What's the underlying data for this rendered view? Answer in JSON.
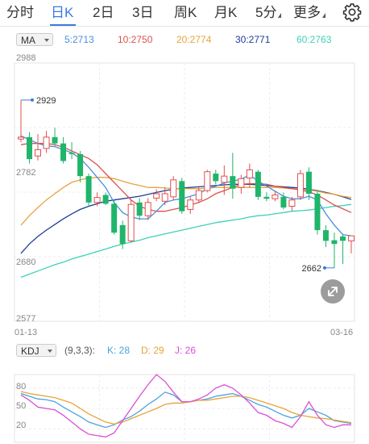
{
  "tabs": [
    {
      "label": "分时",
      "active": false
    },
    {
      "label": "日K",
      "active": true
    },
    {
      "label": "2日",
      "active": false
    },
    {
      "label": "3日",
      "active": false
    },
    {
      "label": "周K",
      "active": false
    },
    {
      "label": "月K",
      "active": false
    },
    {
      "label": "5分",
      "active": false
    },
    {
      "label": "更多",
      "active": false
    }
  ],
  "settings_icon": "gear-icon",
  "ma_legend": {
    "selector": "MA",
    "items": [
      {
        "label": "5:2713",
        "color": "#4a90d9"
      },
      {
        "label": "10:2750",
        "color": "#d9534f"
      },
      {
        "label": "20:2774",
        "color": "#e8a33a"
      },
      {
        "label": "30:2771",
        "color": "#1f3d99"
      },
      {
        "label": "60:2763",
        "color": "#3ed1b5"
      }
    ]
  },
  "price_axis": {
    "ticks": [
      "2988",
      "2782",
      "2680",
      "2577"
    ]
  },
  "date_axis": {
    "start": "01-13",
    "end": "03-16"
  },
  "annotations": {
    "high": "2929",
    "low": "2662"
  },
  "kdj_legend": {
    "selector": "KDJ",
    "params": "(9,3,3):",
    "k": "K: 28",
    "d": "D: 29",
    "j": "J: 26",
    "k_color": "#4aa3df",
    "d_color": "#e8a33a",
    "j_color": "#d94fd6"
  },
  "kdj_axis": {
    "ticks": [
      "80",
      "50",
      "20"
    ]
  },
  "colors": {
    "up": "#e05050",
    "down": "#1fb56a",
    "accent": "#3b7be0"
  },
  "chart_data": [
    {
      "type": "candlestick",
      "title": "",
      "ylim": [
        2577,
        2988
      ],
      "x_range": [
        "01-13",
        "03-16"
      ],
      "candles": [
        {
          "o": 2867,
          "h": 2929,
          "l": 2862,
          "c": 2870
        },
        {
          "o": 2870,
          "h": 2878,
          "l": 2828,
          "c": 2835
        },
        {
          "o": 2840,
          "h": 2875,
          "l": 2833,
          "c": 2850
        },
        {
          "o": 2852,
          "h": 2880,
          "l": 2845,
          "c": 2870
        },
        {
          "o": 2870,
          "h": 2885,
          "l": 2856,
          "c": 2860
        },
        {
          "o": 2860,
          "h": 2870,
          "l": 2828,
          "c": 2832
        },
        {
          "o": 2845,
          "h": 2862,
          "l": 2835,
          "c": 2843
        },
        {
          "o": 2843,
          "h": 2848,
          "l": 2798,
          "c": 2808
        },
        {
          "o": 2808,
          "h": 2812,
          "l": 2760,
          "c": 2766
        },
        {
          "o": 2766,
          "h": 2782,
          "l": 2760,
          "c": 2774
        },
        {
          "o": 2778,
          "h": 2782,
          "l": 2762,
          "c": 2764
        },
        {
          "o": 2764,
          "h": 2770,
          "l": 2715,
          "c": 2718
        },
        {
          "o": 2730,
          "h": 2737,
          "l": 2692,
          "c": 2700
        },
        {
          "o": 2705,
          "h": 2770,
          "l": 2703,
          "c": 2763
        },
        {
          "o": 2766,
          "h": 2773,
          "l": 2738,
          "c": 2745
        },
        {
          "o": 2745,
          "h": 2773,
          "l": 2738,
          "c": 2766
        },
        {
          "o": 2773,
          "h": 2787,
          "l": 2768,
          "c": 2780
        },
        {
          "o": 2768,
          "h": 2790,
          "l": 2762,
          "c": 2780
        },
        {
          "o": 2775,
          "h": 2808,
          "l": 2770,
          "c": 2802
        },
        {
          "o": 2800,
          "h": 2805,
          "l": 2748,
          "c": 2752
        },
        {
          "o": 2755,
          "h": 2775,
          "l": 2748,
          "c": 2770
        },
        {
          "o": 2770,
          "h": 2790,
          "l": 2765,
          "c": 2785
        },
        {
          "o": 2785,
          "h": 2818,
          "l": 2782,
          "c": 2815
        },
        {
          "o": 2812,
          "h": 2818,
          "l": 2795,
          "c": 2800
        },
        {
          "o": 2798,
          "h": 2825,
          "l": 2778,
          "c": 2808
        },
        {
          "o": 2808,
          "h": 2845,
          "l": 2772,
          "c": 2788
        },
        {
          "o": 2790,
          "h": 2810,
          "l": 2780,
          "c": 2804
        },
        {
          "o": 2805,
          "h": 2828,
          "l": 2790,
          "c": 2818
        },
        {
          "o": 2815,
          "h": 2818,
          "l": 2770,
          "c": 2775
        },
        {
          "o": 2775,
          "h": 2782,
          "l": 2768,
          "c": 2772
        },
        {
          "o": 2772,
          "h": 2785,
          "l": 2768,
          "c": 2778
        },
        {
          "o": 2775,
          "h": 2782,
          "l": 2755,
          "c": 2758
        },
        {
          "o": 2760,
          "h": 2775,
          "l": 2752,
          "c": 2770
        },
        {
          "o": 2775,
          "h": 2818,
          "l": 2770,
          "c": 2812
        },
        {
          "o": 2815,
          "h": 2822,
          "l": 2770,
          "c": 2780
        },
        {
          "o": 2780,
          "h": 2785,
          "l": 2715,
          "c": 2722
        },
        {
          "o": 2722,
          "h": 2730,
          "l": 2695,
          "c": 2705
        },
        {
          "o": 2706,
          "h": 2718,
          "l": 2662,
          "c": 2700
        },
        {
          "o": 2712,
          "h": 2716,
          "l": 2668,
          "c": 2705
        },
        {
          "o": 2705,
          "h": 2712,
          "l": 2685,
          "c": 2713
        }
      ],
      "ma": {
        "MA5": [
          2872,
          2866,
          2860,
          2856,
          2855,
          2850,
          2845,
          2836,
          2822,
          2806,
          2790,
          2766,
          2750,
          2743,
          2740,
          2740,
          2752,
          2766,
          2770,
          2772,
          2776,
          2780,
          2788,
          2792,
          2797,
          2800,
          2803,
          2810,
          2800,
          2792,
          2784,
          2776,
          2772,
          2772,
          2776,
          2770,
          2748,
          2730,
          2715,
          2713
        ],
        "MA10": [
          2858,
          2860,
          2860,
          2860,
          2858,
          2854,
          2848,
          2842,
          2836,
          2826,
          2812,
          2798,
          2784,
          2770,
          2760,
          2755,
          2752,
          2752,
          2755,
          2758,
          2762,
          2766,
          2772,
          2780,
          2785,
          2790,
          2795,
          2796,
          2796,
          2795,
          2792,
          2790,
          2788,
          2786,
          2783,
          2778,
          2770,
          2762,
          2756,
          2750
        ],
        "MA20": [
          2730,
          2745,
          2758,
          2770,
          2780,
          2790,
          2798,
          2802,
          2805,
          2806,
          2806,
          2804,
          2800,
          2796,
          2793,
          2790,
          2790,
          2789,
          2788,
          2788,
          2788,
          2788,
          2789,
          2790,
          2790,
          2790,
          2790,
          2790,
          2790,
          2790,
          2790,
          2789,
          2788,
          2787,
          2786,
          2784,
          2781,
          2779,
          2776,
          2774
        ],
        "MA30": [
          2685,
          2700,
          2712,
          2722,
          2731,
          2740,
          2748,
          2755,
          2760,
          2764,
          2768,
          2770,
          2772,
          2774,
          2776,
          2779,
          2782,
          2785,
          2787,
          2789,
          2790,
          2791,
          2792,
          2793,
          2794,
          2795,
          2795,
          2795,
          2794,
          2793,
          2792,
          2791,
          2790,
          2789,
          2787,
          2785,
          2782,
          2779,
          2775,
          2771
        ],
        "MA60": [
          2647,
          2652,
          2657,
          2662,
          2667,
          2671,
          2676,
          2680,
          2684,
          2688,
          2692,
          2696,
          2700,
          2703,
          2706,
          2710,
          2713,
          2716,
          2719,
          2722,
          2725,
          2728,
          2731,
          2734,
          2736,
          2738,
          2740,
          2743,
          2745,
          2746,
          2748,
          2750,
          2752,
          2753,
          2754,
          2756,
          2758,
          2760,
          2761,
          2763
        ]
      }
    },
    {
      "type": "line",
      "title": "",
      "ylim": [
        0,
        100
      ],
      "series": [
        {
          "name": "K",
          "values": [
            72,
            68,
            64,
            63,
            60,
            52,
            45,
            38,
            30,
            26,
            22,
            26,
            33,
            38,
            46,
            56,
            64,
            74,
            70,
            60,
            60,
            62,
            64,
            68,
            70,
            72,
            68,
            62,
            56,
            52,
            46,
            40,
            36,
            40,
            50,
            45,
            40,
            32,
            30,
            28
          ]
        },
        {
          "name": "D",
          "values": [
            75,
            72,
            70,
            68,
            66,
            62,
            58,
            50,
            42,
            36,
            30,
            27,
            30,
            35,
            40,
            45,
            50,
            56,
            58,
            58,
            60,
            62,
            62,
            64,
            66,
            68,
            68,
            66,
            62,
            58,
            54,
            50,
            44,
            40,
            38,
            36,
            35,
            33,
            31,
            29
          ]
        },
        {
          "name": "J",
          "values": [
            70,
            62,
            52,
            50,
            48,
            40,
            30,
            20,
            12,
            10,
            8,
            14,
            32,
            50,
            68,
            85,
            100,
            90,
            74,
            60,
            60,
            64,
            70,
            80,
            85,
            80,
            70,
            58,
            44,
            40,
            32,
            28,
            22,
            38,
            60,
            40,
            26,
            22,
            26,
            26
          ]
        }
      ]
    }
  ]
}
